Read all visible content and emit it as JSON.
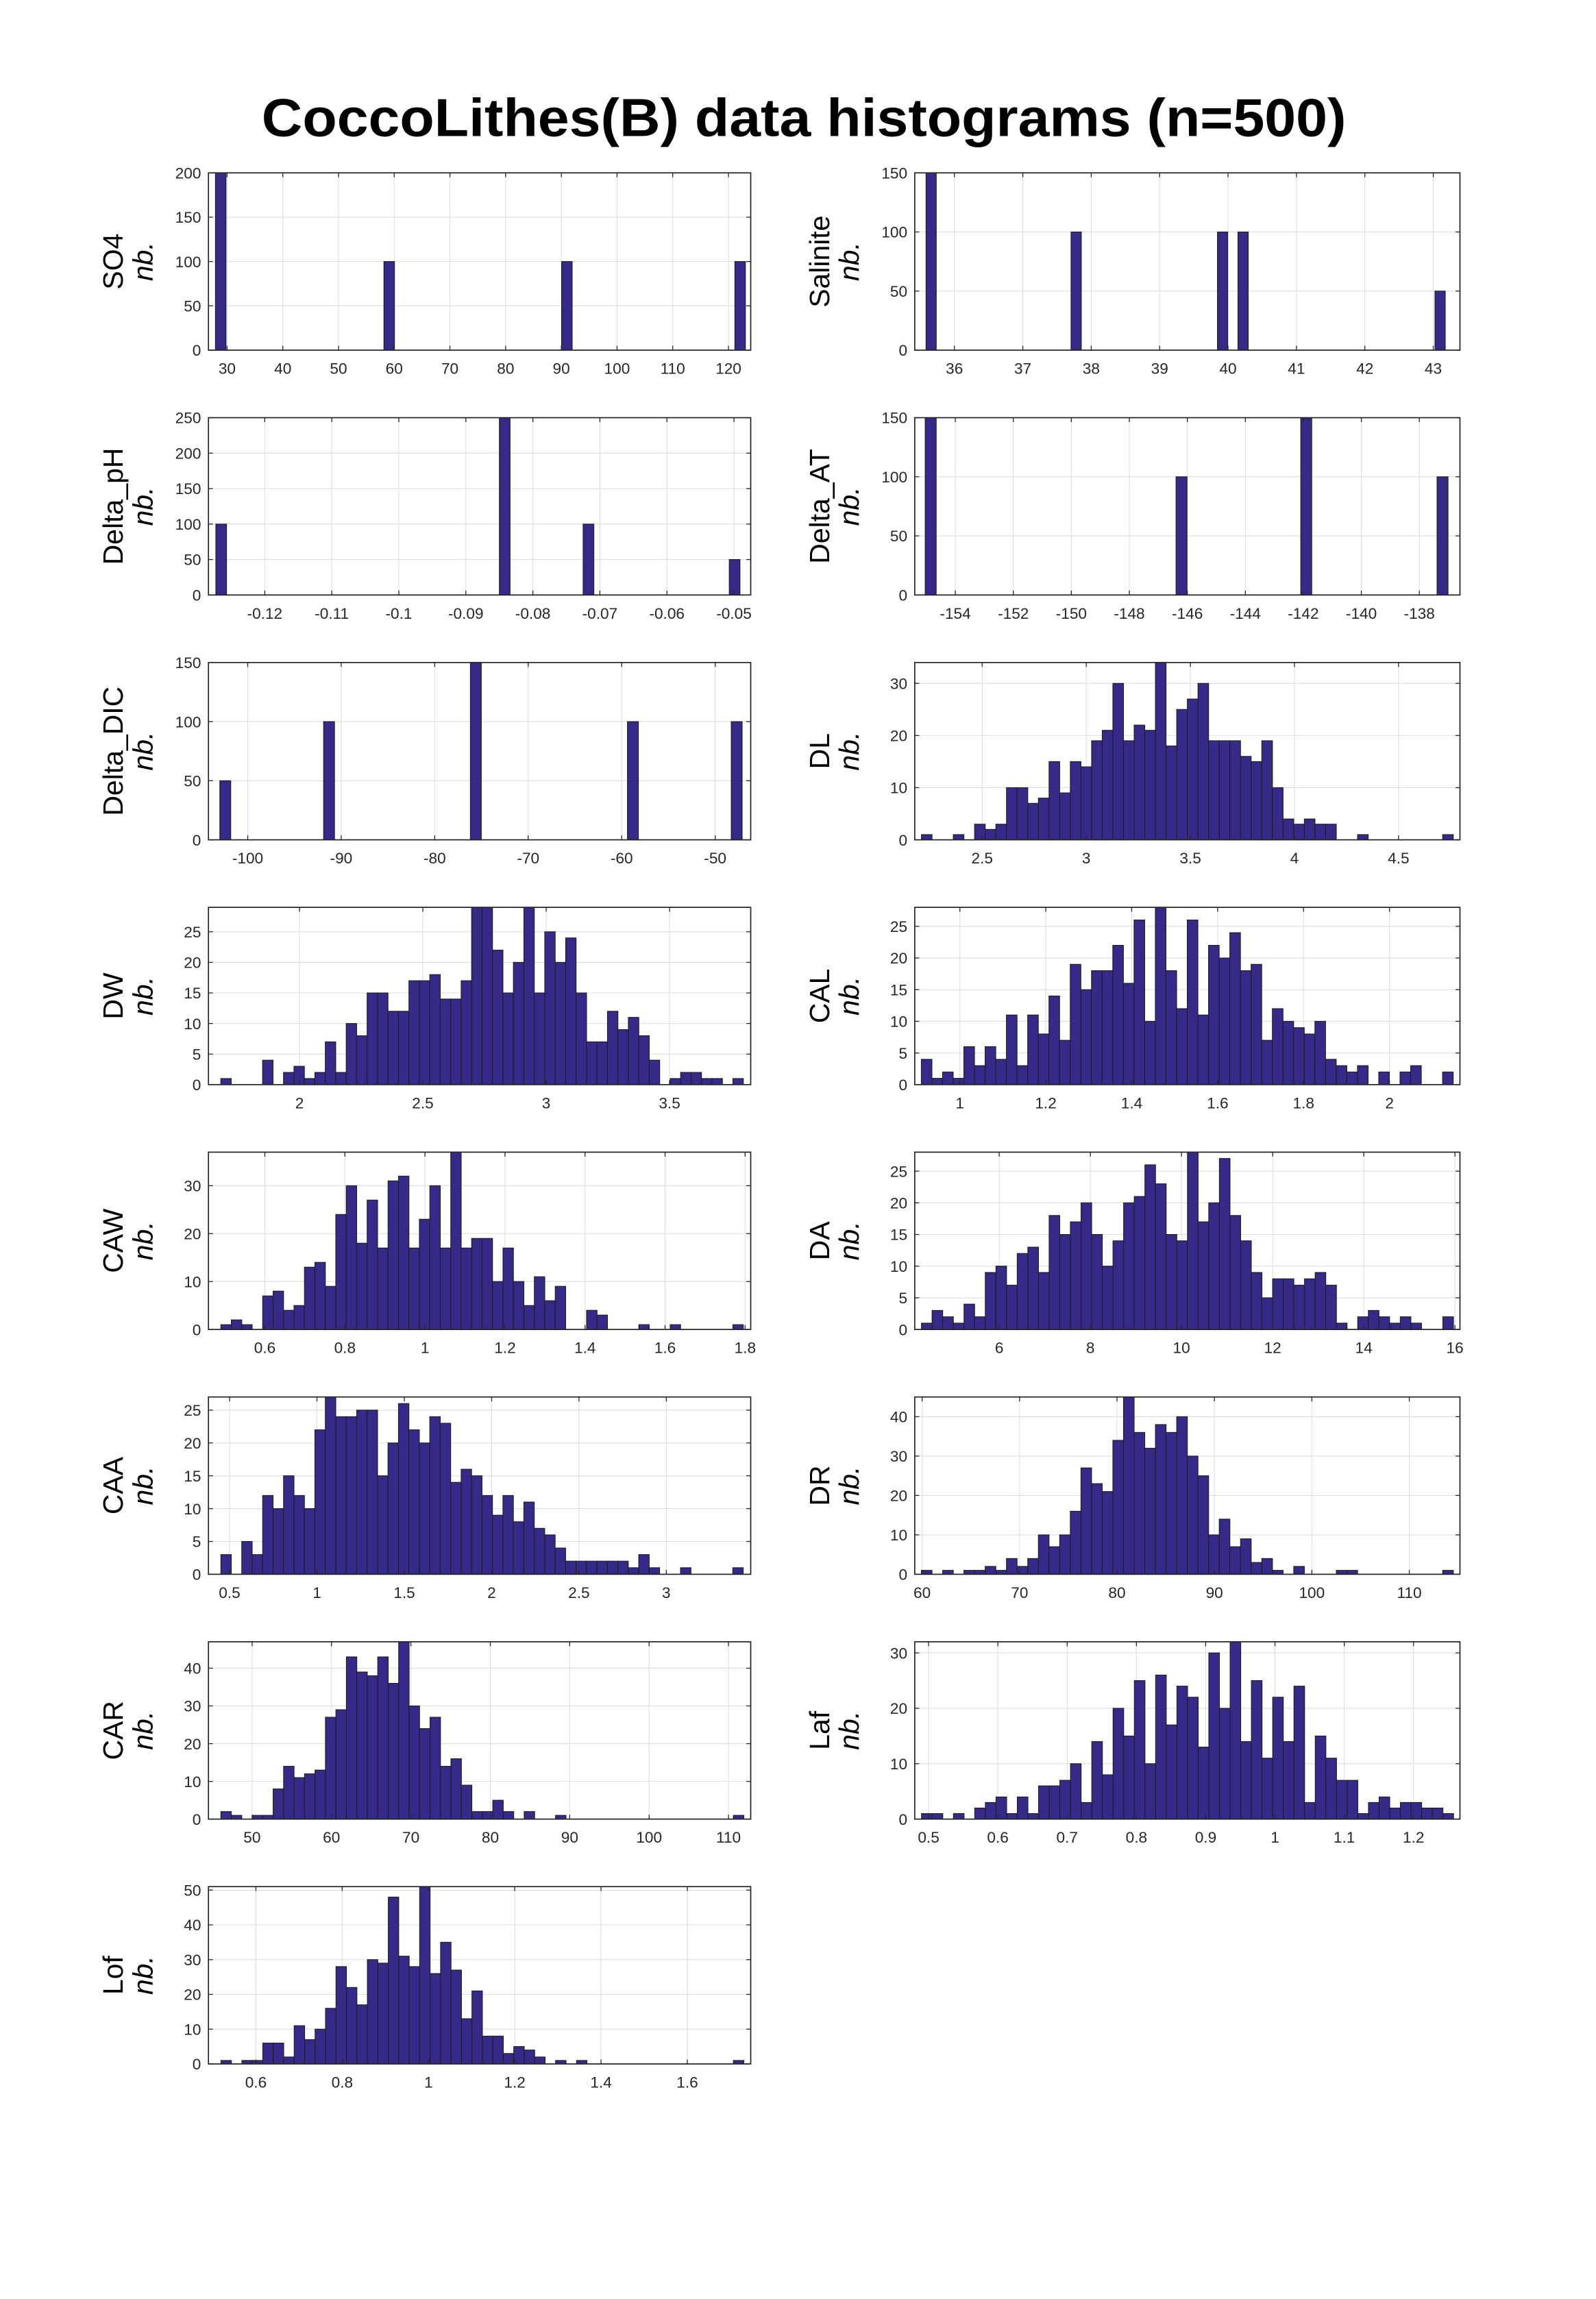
{
  "title": "CoccoLithes(B) data histograms (n=500)",
  "colors": {
    "bar_fill": "#352a87",
    "bar_edge": "#1e1e1e",
    "grid": "#dedede",
    "axis": "#262626"
  },
  "chart_data": [
    {
      "type": "bar",
      "ylabel": "SO4",
      "ylabel2": "nb.",
      "bin_width": 1.9,
      "bin_centers": [
        28.85,
        59.1,
        91.0,
        122.1
      ],
      "counts": [
        200,
        100,
        100,
        100
      ],
      "xlim": [
        26.65,
        124.0
      ],
      "ylim": [
        0,
        200
      ],
      "xticks": [
        30,
        40,
        50,
        60,
        70,
        80,
        90,
        100,
        110,
        120
      ],
      "yticks": [
        0,
        50,
        100,
        150,
        200
      ],
      "grid": true
    },
    {
      "type": "bar",
      "ylabel": "Salinite",
      "ylabel2": "nb.",
      "bin_width": 0.15,
      "bin_centers": [
        35.66,
        37.78,
        39.92,
        40.22,
        43.1
      ],
      "counts": [
        150,
        100,
        100,
        100,
        50
      ],
      "xlim": [
        35.42,
        43.39
      ],
      "ylim": [
        0,
        150
      ],
      "xticks": [
        36,
        37,
        38,
        39,
        40,
        41,
        42,
        43
      ],
      "yticks": [
        0,
        50,
        100,
        150
      ],
      "grid": true
    },
    {
      "type": "bar",
      "ylabel": "Delta_pH",
      "ylabel2": "nb.",
      "bin_width": 0.0016,
      "bin_centers": [
        -0.1265,
        -0.0842,
        -0.0717,
        -0.0499
      ],
      "counts": [
        100,
        250,
        100,
        50
      ],
      "xlim": [
        -0.1284,
        -0.0475
      ],
      "ylim": [
        0,
        250
      ],
      "xticks": [
        -0.12,
        -0.11,
        -0.1,
        -0.09,
        -0.08,
        -0.07,
        -0.06,
        -0.05
      ],
      "yticks": [
        0,
        50,
        100,
        150,
        200,
        250
      ],
      "grid": true
    },
    {
      "type": "bar",
      "ylabel": "Delta_AT",
      "ylabel2": "nb.",
      "bin_width": 0.38,
      "bin_centers": [
        -154.85,
        -146.2,
        -141.9,
        -137.2
      ],
      "counts": [
        150,
        100,
        150,
        100
      ],
      "xlim": [
        -155.4,
        -136.6
      ],
      "ylim": [
        0,
        150
      ],
      "xticks": [
        -154,
        -152,
        -150,
        -148,
        -146,
        -144,
        -142,
        -140,
        -138
      ],
      "yticks": [
        0,
        50,
        100,
        150
      ],
      "grid": true
    },
    {
      "type": "bar",
      "ylabel": "Delta_DIC",
      "ylabel2": "nb.",
      "bin_width": 1.17,
      "bin_centers": [
        -102.4,
        -91.3,
        -75.6,
        -58.8,
        -47.7
      ],
      "counts": [
        50,
        100,
        150,
        100,
        100
      ],
      "xlim": [
        -104.2,
        -46.2
      ],
      "ylim": [
        0,
        150
      ],
      "xticks": [
        -100,
        -90,
        -80,
        -70,
        -60,
        -50
      ],
      "yticks": [
        0,
        50,
        100,
        150
      ],
      "grid": true
    },
    {
      "type": "bar",
      "ylabel": "DL",
      "ylabel2": "nb.",
      "bin_start": 2.208,
      "bin_width": 0.0511,
      "counts": [
        1,
        0,
        0,
        1,
        0,
        3,
        2,
        3,
        10,
        10,
        7,
        8,
        15,
        9,
        15,
        14,
        19,
        21,
        30,
        19,
        22,
        21,
        34,
        18,
        25,
        27,
        30,
        19,
        19,
        19,
        16,
        15,
        19,
        10,
        4,
        3,
        4,
        3,
        3,
        0,
        0,
        1,
        0,
        0,
        0,
        0,
        0,
        0,
        0,
        1
      ],
      "xlim": [
        2.176,
        4.795
      ],
      "ylim": [
        0,
        34
      ],
      "xticks": [
        2.5,
        3,
        3.5,
        4,
        4.5
      ],
      "yticks": [
        0,
        10,
        20,
        30
      ],
      "grid": true
    },
    {
      "type": "bar",
      "ylabel": "DW",
      "ylabel2": "nb.",
      "bin_start": 1.681,
      "bin_width": 0.04236,
      "counts": [
        1,
        0,
        0,
        0,
        4,
        0,
        2,
        3,
        1,
        2,
        7,
        2,
        10,
        8,
        15,
        15,
        12,
        12,
        17,
        17,
        18,
        14,
        14,
        17,
        29,
        29,
        22,
        15,
        20,
        29,
        15,
        25,
        20,
        24,
        15,
        7,
        7,
        12,
        9,
        11,
        8,
        4,
        0,
        1,
        2,
        2,
        1,
        1,
        0,
        1
      ],
      "xlim": [
        1.631,
        3.829
      ],
      "ylim": [
        0,
        29
      ],
      "xticks": [
        2,
        2.5,
        3,
        3.5
      ],
      "yticks": [
        0,
        5,
        10,
        15,
        20,
        25
      ],
      "grid": true
    },
    {
      "type": "bar",
      "ylabel": "CAL",
      "ylabel2": "nb.",
      "bin_start": 0.9103,
      "bin_width": 0.02476,
      "counts": [
        4,
        1,
        2,
        1,
        6,
        3,
        6,
        4,
        11,
        3,
        11,
        8,
        14,
        7,
        19,
        15,
        18,
        18,
        22,
        16,
        26,
        10,
        28,
        18,
        12,
        26,
        11,
        22,
        20,
        24,
        18,
        19,
        7,
        12,
        10,
        9,
        8,
        10,
        4,
        3,
        2,
        3,
        0,
        2,
        0,
        2,
        3,
        0,
        0,
        2
      ],
      "xlim": [
        0.895,
        2.164
      ],
      "ylim": [
        0,
        28
      ],
      "xticks": [
        1,
        1.2,
        1.4,
        1.6,
        1.8,
        2
      ],
      "yticks": [
        0,
        5,
        10,
        15,
        20,
        25
      ],
      "grid": true
    },
    {
      "type": "bar",
      "ylabel": "CAW",
      "ylabel2": "nb.",
      "bin_start": 0.49,
      "bin_width": 0.02611,
      "counts": [
        1,
        2,
        1,
        0,
        7,
        8,
        4,
        5,
        13,
        14,
        9,
        24,
        30,
        18,
        27,
        17,
        31,
        32,
        17,
        23,
        30,
        17,
        37,
        17,
        19,
        19,
        10,
        17,
        10,
        5,
        11,
        6,
        9,
        0,
        0,
        4,
        3,
        0,
        0,
        0,
        1,
        0,
        0,
        1,
        0,
        0,
        0,
        0,
        0,
        1
      ],
      "xlim": [
        0.459,
        1.814
      ],
      "ylim": [
        0,
        37
      ],
      "xticks": [
        0.6,
        0.8,
        1,
        1.2,
        1.4,
        1.6,
        1.8
      ],
      "yticks": [
        0,
        10,
        20,
        30
      ],
      "grid": true
    },
    {
      "type": "bar",
      "ylabel": "DA",
      "ylabel2": "nb.",
      "bin_start": 4.293,
      "bin_width": 0.2335,
      "counts": [
        1,
        3,
        2,
        1,
        4,
        2,
        9,
        10,
        7,
        12,
        13,
        9,
        18,
        15,
        17,
        20,
        15,
        10,
        14,
        20,
        21,
        26,
        23,
        15,
        14,
        28,
        17,
        20,
        27,
        18,
        14,
        9,
        5,
        8,
        8,
        7,
        8,
        9,
        7,
        1,
        0,
        2,
        3,
        2,
        1,
        2,
        1,
        0,
        0,
        2
      ],
      "xlim": [
        4.146,
        16.11
      ],
      "ylim": [
        0,
        28
      ],
      "xticks": [
        6,
        8,
        10,
        12,
        14,
        16
      ],
      "yticks": [
        0,
        5,
        10,
        15,
        20,
        25
      ],
      "grid": true
    },
    {
      "type": "bar",
      "ylabel": "CAA",
      "ylabel2": "nb.",
      "bin_start": 0.45,
      "bin_width": 0.0598,
      "counts": [
        3,
        0,
        5,
        3,
        12,
        10,
        15,
        12,
        10,
        22,
        27,
        24,
        24,
        25,
        25,
        15,
        20,
        26,
        22,
        20,
        24,
        23,
        14,
        16,
        15,
        12,
        9,
        12,
        8,
        11,
        7,
        6,
        4,
        2,
        2,
        2,
        2,
        2,
        2,
        1,
        3,
        1,
        0,
        0,
        1,
        0,
        0,
        0,
        0,
        1
      ],
      "xlim": [
        0.379,
        3.483
      ],
      "ylim": [
        0,
        27
      ],
      "xticks": [
        0.5,
        1,
        1.5,
        2,
        2.5,
        3
      ],
      "yticks": [
        0,
        5,
        10,
        15,
        20,
        25
      ],
      "grid": true
    },
    {
      "type": "bar",
      "ylabel": "DR",
      "ylabel2": "nb.",
      "bin_start": 59.92,
      "bin_width": 1.092,
      "counts": [
        1,
        0,
        1,
        0,
        1,
        1,
        2,
        1,
        4,
        2,
        4,
        10,
        7,
        10,
        16,
        27,
        23,
        21,
        34,
        45,
        36,
        32,
        38,
        36,
        40,
        30,
        25,
        10,
        14,
        7,
        9,
        3,
        4,
        1,
        0,
        2,
        0,
        0,
        0,
        1,
        1,
        0,
        0,
        0,
        0,
        0,
        0,
        0,
        0,
        1
      ],
      "xlim": [
        59.24,
        115.2
      ],
      "ylim": [
        0,
        45
      ],
      "xticks": [
        60,
        70,
        80,
        90,
        100,
        110
      ],
      "yticks": [
        0,
        10,
        20,
        30,
        40
      ],
      "grid": true
    },
    {
      "type": "bar",
      "ylabel": "CAR",
      "ylabel2": "nb.",
      "bin_start": 46.06,
      "bin_width": 1.3174,
      "counts": [
        2,
        1,
        0,
        1,
        1,
        8,
        14,
        11,
        12,
        13,
        27,
        29,
        43,
        39,
        38,
        43,
        36,
        47,
        30,
        24,
        27,
        14,
        16,
        9,
        2,
        2,
        5,
        2,
        0,
        2,
        0,
        0,
        1,
        0,
        0,
        0,
        0,
        0,
        0,
        0,
        0,
        0,
        0,
        0,
        0,
        0,
        0,
        0,
        0,
        1
      ],
      "xlim": [
        44.5,
        112.8
      ],
      "ylim": [
        0,
        47
      ],
      "xticks": [
        50,
        60,
        70,
        80,
        90,
        100,
        110
      ],
      "yticks": [
        0,
        10,
        20,
        30,
        40
      ],
      "grid": true
    },
    {
      "type": "bar",
      "ylabel": "Laf",
      "ylabel2": "nb.",
      "bin_start": 0.4898,
      "bin_width": 0.01536,
      "counts": [
        1,
        1,
        0,
        1,
        0,
        2,
        3,
        4,
        1,
        4,
        1,
        6,
        6,
        7,
        10,
        3,
        14,
        8,
        20,
        15,
        25,
        10,
        26,
        17,
        24,
        22,
        13,
        30,
        20,
        32,
        14,
        25,
        11,
        22,
        14,
        24,
        3,
        15,
        11,
        7,
        7,
        1,
        3,
        4,
        2,
        3,
        3,
        2,
        2,
        1
      ],
      "xlim": [
        0.48,
        1.267
      ],
      "ylim": [
        0,
        32
      ],
      "xticks": [
        0.5,
        0.6,
        0.7,
        0.8,
        0.9,
        1,
        1.1,
        1.2
      ],
      "yticks": [
        0,
        10,
        20,
        30
      ],
      "grid": true
    },
    {
      "type": "bar",
      "ylabel": "Lof",
      "ylabel2": "nb.",
      "bin_start": 0.519,
      "bin_width": 0.02424,
      "counts": [
        1,
        0,
        1,
        1,
        6,
        6,
        2,
        11,
        7,
        10,
        16,
        28,
        22,
        17,
        30,
        29,
        48,
        31,
        28,
        51,
        26,
        35,
        27,
        13,
        21,
        8,
        8,
        3,
        5,
        4,
        2,
        0,
        1,
        0,
        1,
        0,
        0,
        0,
        0,
        0,
        0,
        0,
        0,
        0,
        0,
        0,
        0,
        0,
        0,
        1
      ],
      "xlim": [
        0.49,
        1.747
      ],
      "ylim": [
        0,
        51
      ],
      "xticks": [
        0.6,
        0.8,
        1,
        1.2,
        1.4,
        1.6
      ],
      "yticks": [
        0,
        10,
        20,
        30,
        40,
        50
      ],
      "grid": true
    }
  ]
}
